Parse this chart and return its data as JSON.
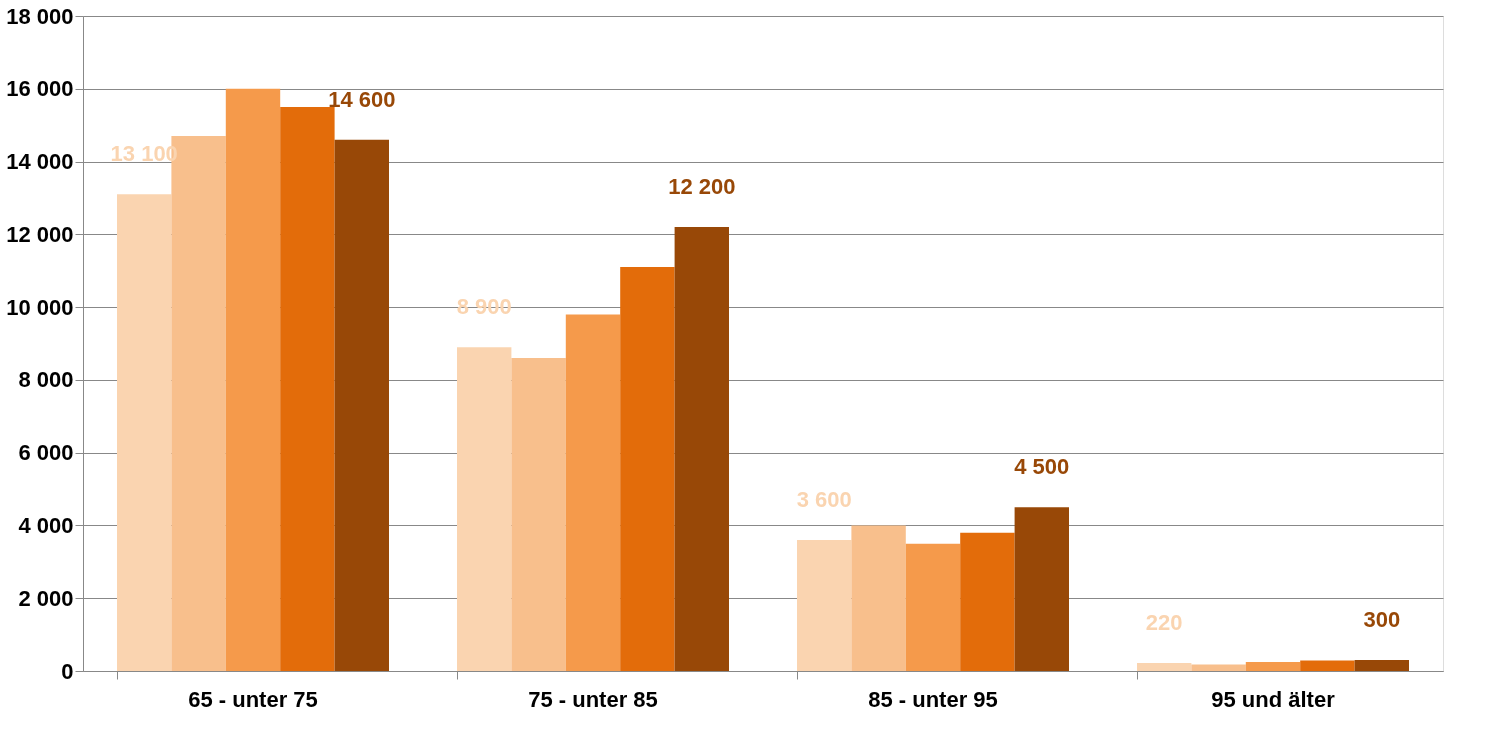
{
  "chart_data": {
    "type": "bar",
    "categories": [
      "65 - unter 75",
      "75 - unter 85",
      "85 - unter 95",
      "95 und älter"
    ],
    "series": [
      {
        "color": "#fad4b0",
        "values": [
          13100,
          8900,
          3600,
          220
        ],
        "value_labels": [
          "13 100",
          "8 900",
          "3 600",
          "220"
        ]
      },
      {
        "color": "#f8bf8c",
        "values": [
          14700,
          8600,
          4000,
          180
        ]
      },
      {
        "color": "#f59a4b",
        "values": [
          16000,
          9800,
          3500,
          250
        ]
      },
      {
        "color": "#e36c0a",
        "values": [
          15500,
          11100,
          3800,
          290
        ]
      },
      {
        "color": "#984807",
        "values": [
          14600,
          12200,
          4500,
          300
        ],
        "value_labels": [
          "14 600",
          "12 200",
          "4 500",
          "300"
        ]
      }
    ],
    "ylim": [
      0,
      18000
    ],
    "yticks": [
      {
        "value": 0,
        "label": "0"
      },
      {
        "value": 2000,
        "label": "2 000"
      },
      {
        "value": 4000,
        "label": "4 000"
      },
      {
        "value": 6000,
        "label": "6 000"
      },
      {
        "value": 8000,
        "label": "8 000"
      },
      {
        "value": 10000,
        "label": "10 000"
      },
      {
        "value": 12000,
        "label": "12 000"
      },
      {
        "value": 14000,
        "label": "14 000"
      },
      {
        "value": 16000,
        "label": "16 000"
      },
      {
        "value": 18000,
        "label": "18 000"
      }
    ],
    "grid": "y",
    "legend": false
  }
}
